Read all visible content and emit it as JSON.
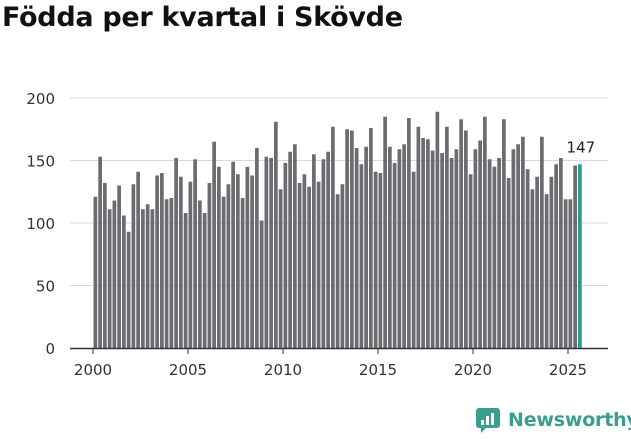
{
  "page": {
    "title": "Födda per kvartal i Skövde",
    "brand": "Newsworthy",
    "brand_color": "#3a9e8f"
  },
  "chart_data": {
    "type": "bar",
    "title": "Födda per kvartal i Skövde",
    "xlabel": "",
    "ylabel": "",
    "ylim": [
      0,
      200
    ],
    "yticks": [
      0,
      50,
      100,
      150,
      200
    ],
    "xticks": [
      "2000",
      "2005",
      "2010",
      "2015",
      "2020",
      "2025"
    ],
    "start_year": 2000,
    "bar_color": "#6d6b70",
    "highlight_color": "#2a9c8e",
    "highlight_label": "147",
    "values": [
      121,
      153,
      132,
      111,
      118,
      130,
      106,
      93,
      131,
      141,
      111,
      115,
      111,
      138,
      140,
      119,
      120,
      152,
      137,
      108,
      133,
      151,
      118,
      108,
      132,
      165,
      145,
      121,
      131,
      149,
      139,
      120,
      145,
      138,
      160,
      102,
      153,
      152,
      181,
      127,
      148,
      157,
      163,
      132,
      139,
      129,
      155,
      133,
      151,
      157,
      177,
      123,
      131,
      175,
      174,
      160,
      147,
      161,
      176,
      141,
      140,
      185,
      161,
      148,
      159,
      163,
      184,
      141,
      177,
      168,
      167,
      158,
      189,
      156,
      177,
      152,
      159,
      183,
      174,
      139,
      159,
      166,
      185,
      151,
      145,
      152,
      183,
      136,
      159,
      163,
      169,
      143,
      127,
      137,
      169,
      123,
      137,
      147,
      152,
      119,
      119,
      146,
      147
    ]
  }
}
